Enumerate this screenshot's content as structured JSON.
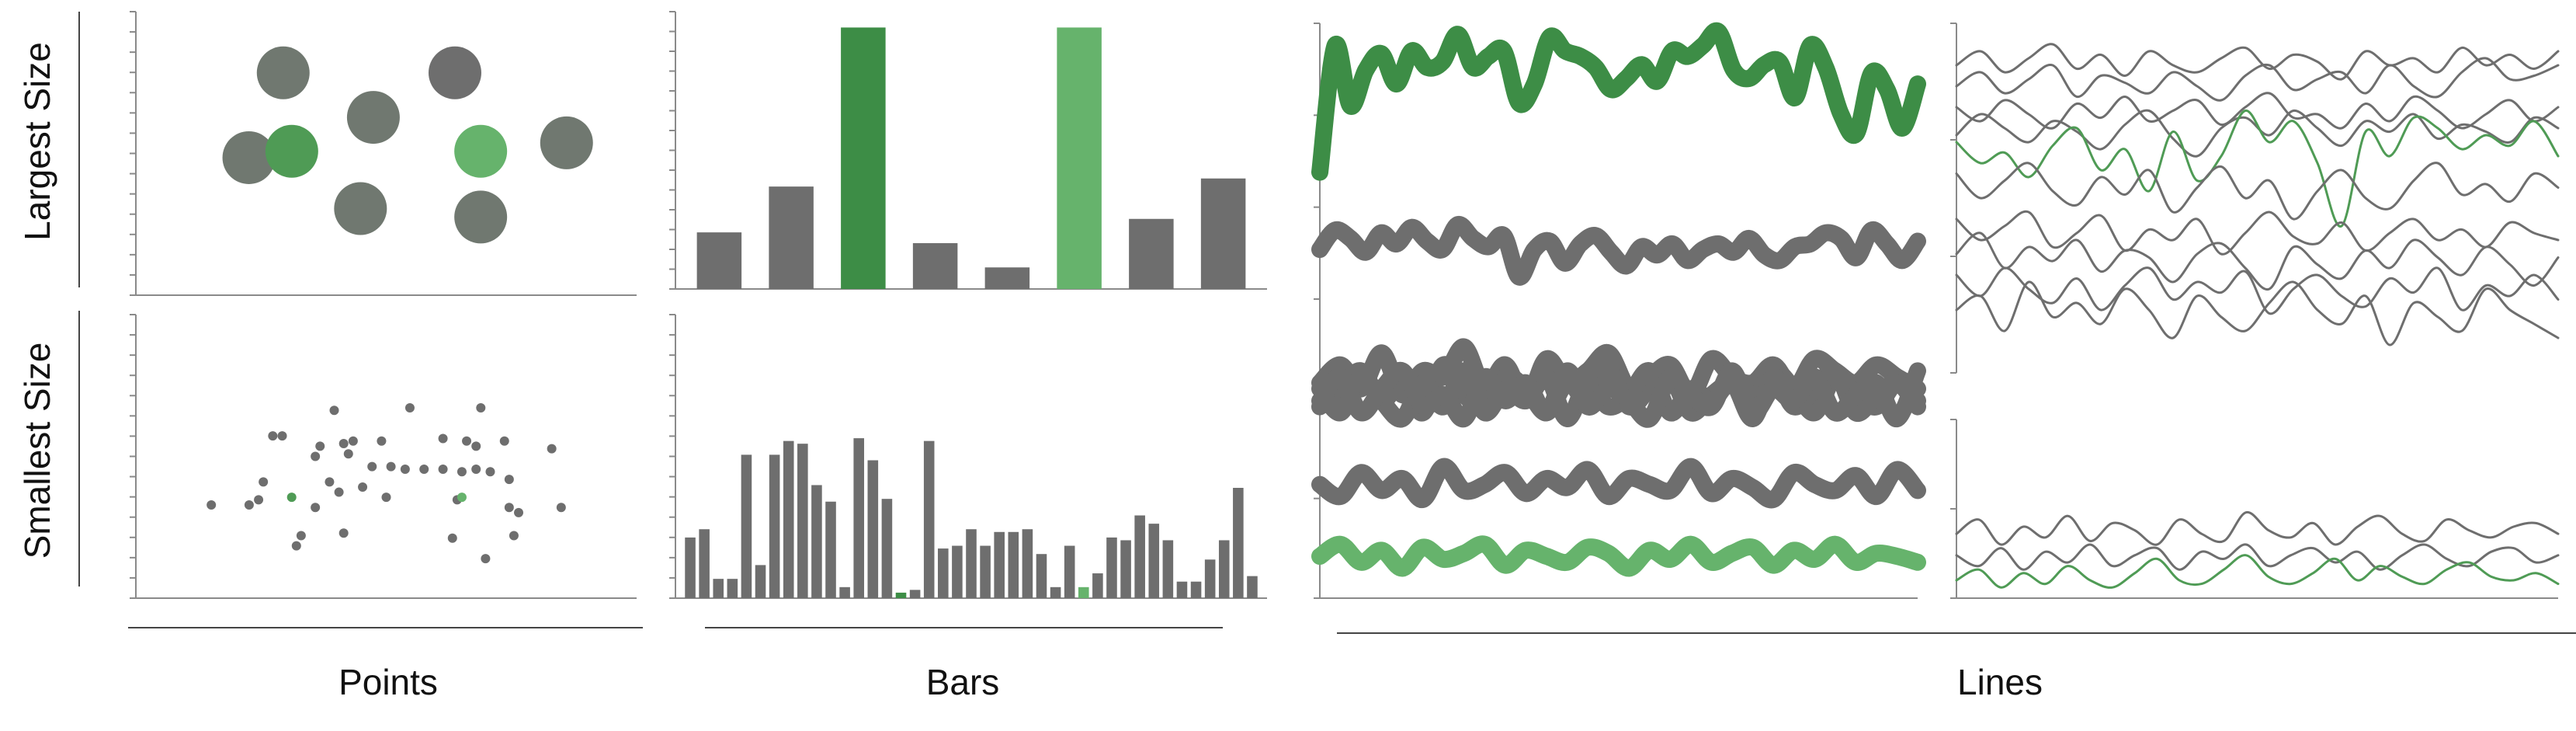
{
  "colors": {
    "gray": "#6e6e6e",
    "gray_dark": "#707870",
    "green_dark": "#3d8d46",
    "green_mid": "#4f9b55",
    "green_light": "#66b36c",
    "axis": "#8a8a8a"
  },
  "labels": {
    "row_top": "Largest Size",
    "row_bottom": "Smallest Size",
    "col_points": "Points",
    "col_bars": "Bars",
    "col_lines": "Lines"
  },
  "chart_data": [
    {
      "id": "points-largest",
      "type": "scatter",
      "xlim": [
        0,
        100
      ],
      "ylim": [
        0,
        100
      ],
      "points": [
        {
          "x": 26,
          "y": 88,
          "c": "gray_dark"
        },
        {
          "x": 66,
          "y": 88,
          "c": "gray"
        },
        {
          "x": 47,
          "y": 67,
          "c": "gray_dark"
        },
        {
          "x": 18,
          "y": 48,
          "c": "gray_dark"
        },
        {
          "x": 28,
          "y": 51,
          "c": "green_mid",
          "highlight": true
        },
        {
          "x": 72,
          "y": 51,
          "c": "green_light",
          "highlight": true
        },
        {
          "x": 92,
          "y": 55,
          "c": "gray_dark"
        },
        {
          "x": 44,
          "y": 24,
          "c": "gray_dark"
        },
        {
          "x": 72,
          "y": 20,
          "c": "gray_dark"
        }
      ]
    },
    {
      "id": "points-smallest",
      "type": "scatter",
      "xlim": [
        0,
        100
      ],
      "ylim": [
        0,
        100
      ],
      "points": [
        {
          "x": 26,
          "y": 58,
          "c": "gray"
        },
        {
          "x": 39,
          "y": 68,
          "c": "gray"
        },
        {
          "x": 55,
          "y": 69,
          "c": "gray"
        },
        {
          "x": 70,
          "y": 69,
          "c": "gray"
        },
        {
          "x": 28,
          "y": 58,
          "c": "gray"
        },
        {
          "x": 41,
          "y": 55,
          "c": "gray"
        },
        {
          "x": 43,
          "y": 56,
          "c": "gray"
        },
        {
          "x": 49,
          "y": 56,
          "c": "gray"
        },
        {
          "x": 62,
          "y": 57,
          "c": "gray"
        },
        {
          "x": 67,
          "y": 56,
          "c": "gray"
        },
        {
          "x": 75,
          "y": 56,
          "c": "gray"
        },
        {
          "x": 69,
          "y": 54,
          "c": "gray"
        },
        {
          "x": 85,
          "y": 53,
          "c": "gray"
        },
        {
          "x": 24,
          "y": 40,
          "c": "gray"
        },
        {
          "x": 35,
          "y": 50,
          "c": "gray"
        },
        {
          "x": 42,
          "y": 51,
          "c": "gray"
        },
        {
          "x": 47,
          "y": 46,
          "c": "gray"
        },
        {
          "x": 51,
          "y": 46,
          "c": "gray"
        },
        {
          "x": 54,
          "y": 45,
          "c": "gray"
        },
        {
          "x": 58,
          "y": 45,
          "c": "gray"
        },
        {
          "x": 62,
          "y": 45,
          "c": "gray"
        },
        {
          "x": 66,
          "y": 44,
          "c": "gray"
        },
        {
          "x": 69,
          "y": 45,
          "c": "gray"
        },
        {
          "x": 72,
          "y": 44,
          "c": "gray"
        },
        {
          "x": 76,
          "y": 41,
          "c": "gray"
        },
        {
          "x": 38,
          "y": 40,
          "c": "gray"
        },
        {
          "x": 40,
          "y": 36,
          "c": "gray"
        },
        {
          "x": 45,
          "y": 38,
          "c": "gray"
        },
        {
          "x": 50,
          "y": 34,
          "c": "gray"
        },
        {
          "x": 65,
          "y": 33,
          "c": "gray"
        },
        {
          "x": 76,
          "y": 30,
          "c": "gray"
        },
        {
          "x": 23,
          "y": 33,
          "c": "gray"
        },
        {
          "x": 21,
          "y": 31,
          "c": "gray"
        },
        {
          "x": 13,
          "y": 31,
          "c": "gray"
        },
        {
          "x": 78,
          "y": 28,
          "c": "gray"
        },
        {
          "x": 32,
          "y": 19,
          "c": "gray"
        },
        {
          "x": 41,
          "y": 20,
          "c": "gray"
        },
        {
          "x": 31,
          "y": 15,
          "c": "gray"
        },
        {
          "x": 64,
          "y": 18,
          "c": "gray"
        },
        {
          "x": 71,
          "y": 10,
          "c": "gray"
        },
        {
          "x": 77,
          "y": 19,
          "c": "gray"
        },
        {
          "x": 87,
          "y": 30,
          "c": "gray"
        },
        {
          "x": 35,
          "y": 30,
          "c": "gray"
        },
        {
          "x": 36,
          "y": 54,
          "c": "gray"
        },
        {
          "x": 30,
          "y": 34,
          "c": "green_mid",
          "highlight": true
        },
        {
          "x": 66,
          "y": 34,
          "c": "green_light",
          "highlight": true
        }
      ]
    },
    {
      "id": "bars-largest",
      "type": "bar",
      "ylim": [
        0,
        100
      ],
      "values": [
        21,
        38,
        97,
        17,
        8,
        97,
        26,
        41
      ],
      "colors": [
        "gray",
        "gray",
        "green_dark",
        "gray",
        "gray",
        "green_light",
        "gray",
        "gray"
      ]
    },
    {
      "id": "bars-smallest",
      "type": "bar",
      "ylim": [
        0,
        100
      ],
      "values": [
        22,
        25,
        7,
        7,
        52,
        12,
        52,
        57,
        56,
        41,
        35,
        4,
        58,
        50,
        36,
        2,
        3,
        57,
        18,
        19,
        25,
        19,
        24,
        24,
        25,
        16,
        4,
        19,
        4,
        9,
        22,
        21,
        30,
        27,
        21,
        6,
        6,
        14,
        21,
        40,
        8
      ],
      "colors": [
        "gray",
        "gray",
        "gray",
        "gray",
        "gray",
        "gray",
        "gray",
        "gray",
        "gray",
        "gray",
        "gray",
        "gray",
        "gray",
        "gray",
        "gray",
        "green_dark",
        "gray",
        "gray",
        "gray",
        "gray",
        "gray",
        "gray",
        "gray",
        "gray",
        "gray",
        "gray",
        "gray",
        "gray",
        "green_light",
        "gray",
        "gray",
        "gray",
        "gray",
        "gray",
        "gray",
        "gray",
        "gray",
        "gray",
        "gray",
        "gray",
        "gray"
      ]
    },
    {
      "id": "lines-largest",
      "type": "line",
      "ylim": [
        0,
        100
      ],
      "series": [
        {
          "color": "green_dark",
          "values": [
            46,
            92,
            70,
            83,
            89,
            78,
            90,
            84,
            86,
            96,
            84,
            88,
            90,
            71,
            78,
            95,
            90,
            88,
            84,
            76,
            80,
            85,
            79,
            90,
            88,
            92,
            97,
            83,
            80,
            85,
            86,
            73,
            92,
            84,
            67,
            60,
            82,
            76,
            62,
            78
          ]
        },
        {
          "color": "gray",
          "values": [
            18,
            25,
            22,
            17,
            24,
            20,
            26,
            21,
            18,
            27,
            22,
            19,
            23,
            8,
            18,
            21,
            13,
            20,
            23,
            17,
            12,
            19,
            16,
            20,
            14,
            18,
            20,
            17,
            22,
            16,
            14,
            19,
            20,
            24,
            22,
            15,
            25,
            20,
            14,
            21
          ]
        }
      ]
    },
    {
      "id": "lines-thin",
      "type": "line",
      "ylim": [
        0,
        100
      ],
      "series": [
        {
          "color": "gray",
          "values": [
            88,
            92,
            86,
            90,
            94,
            87,
            91,
            85,
            92,
            88,
            86,
            90,
            93,
            87,
            91,
            89,
            84,
            92,
            88,
            90,
            86,
            93,
            88,
            91,
            87,
            92
          ]
        },
        {
          "color": "gray",
          "values": [
            82,
            86,
            80,
            84,
            88,
            79,
            85,
            83,
            80,
            86,
            82,
            78,
            85,
            88,
            81,
            84,
            86,
            80,
            88,
            82,
            79,
            86,
            90,
            84,
            85,
            88
          ]
        },
        {
          "color": "gray",
          "values": [
            76,
            72,
            78,
            74,
            70,
            77,
            73,
            79,
            72,
            75,
            78,
            71,
            76,
            80,
            73,
            74,
            70,
            77,
            72,
            79,
            75,
            70,
            74,
            78,
            72,
            76
          ]
        },
        {
          "color": "gray",
          "values": [
            68,
            74,
            70,
            66,
            72,
            69,
            64,
            71,
            75,
            67,
            62,
            70,
            73,
            68,
            75,
            70,
            65,
            72,
            69,
            74,
            67,
            71,
            69,
            66,
            73,
            70
          ]
        },
        {
          "color": "green_mid",
          "values": [
            66,
            60,
            63,
            56,
            65,
            70,
            58,
            64,
            52,
            69,
            55,
            62,
            75,
            66,
            72,
            60,
            42,
            69,
            62,
            73,
            70,
            64,
            68,
            65,
            72,
            62
          ]
        },
        {
          "color": "gray",
          "values": [
            57,
            50,
            55,
            60,
            52,
            48,
            56,
            51,
            58,
            46,
            53,
            59,
            50,
            55,
            44,
            52,
            58,
            50,
            47,
            55,
            60,
            51,
            54,
            49,
            57,
            53
          ]
        },
        {
          "color": "gray",
          "values": [
            44,
            38,
            42,
            46,
            36,
            40,
            45,
            35,
            41,
            38,
            44,
            34,
            40,
            46,
            39,
            37,
            43,
            35,
            40,
            44,
            38,
            41,
            36,
            43,
            40,
            38
          ]
        },
        {
          "color": "gray",
          "values": [
            34,
            40,
            30,
            36,
            32,
            38,
            29,
            35,
            33,
            26,
            34,
            37,
            30,
            24,
            36,
            31,
            27,
            35,
            30,
            38,
            33,
            28,
            36,
            31,
            25,
            33
          ]
        },
        {
          "color": "gray",
          "values": [
            28,
            22,
            30,
            24,
            20,
            27,
            18,
            25,
            30,
            21,
            26,
            23,
            29,
            17,
            24,
            28,
            22,
            19,
            27,
            23,
            30,
            18,
            25,
            22,
            28,
            21
          ]
        },
        {
          "color": "gray",
          "values": [
            18,
            22,
            12,
            26,
            16,
            20,
            14,
            24,
            18,
            10,
            22,
            16,
            12,
            20,
            26,
            18,
            14,
            22,
            8,
            20,
            16,
            12,
            24,
            18,
            14,
            10
          ]
        }
      ]
    },
    {
      "id": "lines-smallest",
      "type": "line",
      "ylim": [
        0,
        100
      ],
      "series": [
        {
          "color": "gray",
          "values": [
            72,
            78,
            70,
            82,
            68,
            76,
            74,
            84,
            70,
            78,
            66,
            80,
            72,
            76,
            82,
            70,
            74,
            78,
            68,
            80,
            74,
            72,
            78,
            70,
            80,
            76,
            72,
            78,
            74,
            70
          ]
        },
        {
          "color": "gray",
          "values": [
            64,
            70,
            76,
            66,
            72,
            62,
            78,
            68,
            64,
            74,
            70,
            62,
            72,
            66,
            76,
            64,
            70,
            74,
            62,
            68,
            72,
            66,
            76,
            70,
            62,
            74,
            68,
            64,
            72,
            66
          ]
        },
        {
          "color": "gray",
          "values": [
            70,
            62,
            74,
            66,
            60,
            72,
            64,
            76,
            62,
            70,
            66,
            74,
            60,
            72,
            64,
            68,
            76,
            62,
            70,
            66,
            72,
            60,
            74,
            64,
            70,
            76,
            62,
            68,
            72,
            64
          ]
        },
        {
          "color": "gray",
          "values": [
            66,
            74,
            62,
            70,
            76,
            64,
            68,
            60,
            74,
            66,
            72,
            62,
            76,
            64,
            70,
            66,
            60,
            74,
            68,
            64,
            76,
            62,
            70,
            66,
            74,
            62,
            68,
            72,
            60,
            76
          ]
        },
        {
          "color": "gray",
          "values": [
            38,
            34,
            42,
            36,
            40,
            33,
            44,
            36,
            38,
            42,
            35,
            40,
            37,
            43,
            34,
            40,
            38,
            36,
            44,
            35,
            40,
            37,
            33,
            42,
            38,
            36,
            41,
            34,
            43,
            36
          ]
        },
        {
          "color": "green_light",
          "values": [
            14,
            18,
            12,
            16,
            10,
            17,
            13,
            15,
            18,
            11,
            16,
            14,
            12,
            17,
            15,
            10,
            16,
            13,
            18,
            12,
            15,
            17,
            11,
            16,
            13,
            18,
            12,
            15,
            14,
            12
          ]
        }
      ]
    },
    {
      "id": "lines-thin-bottom",
      "type": "line",
      "ylim": [
        0,
        100
      ],
      "series": [
        {
          "color": "gray",
          "values": [
            36,
            44,
            30,
            40,
            34,
            46,
            32,
            42,
            38,
            30,
            44,
            36,
            32,
            48,
            38,
            34,
            42,
            30,
            40,
            46,
            36,
            32,
            44,
            38,
            34,
            40,
            42,
            36
          ]
        },
        {
          "color": "gray",
          "values": [
            24,
            18,
            28,
            16,
            26,
            20,
            30,
            18,
            24,
            28,
            16,
            26,
            22,
            30,
            18,
            24,
            28,
            20,
            26,
            16,
            24,
            30,
            22,
            18,
            26,
            28,
            20,
            24
          ]
        },
        {
          "color": "green_mid",
          "values": [
            10,
            16,
            6,
            14,
            8,
            18,
            10,
            6,
            14,
            22,
            10,
            8,
            16,
            24,
            12,
            8,
            14,
            22,
            10,
            18,
            12,
            8,
            16,
            20,
            12,
            10,
            14,
            8
          ]
        }
      ]
    }
  ]
}
